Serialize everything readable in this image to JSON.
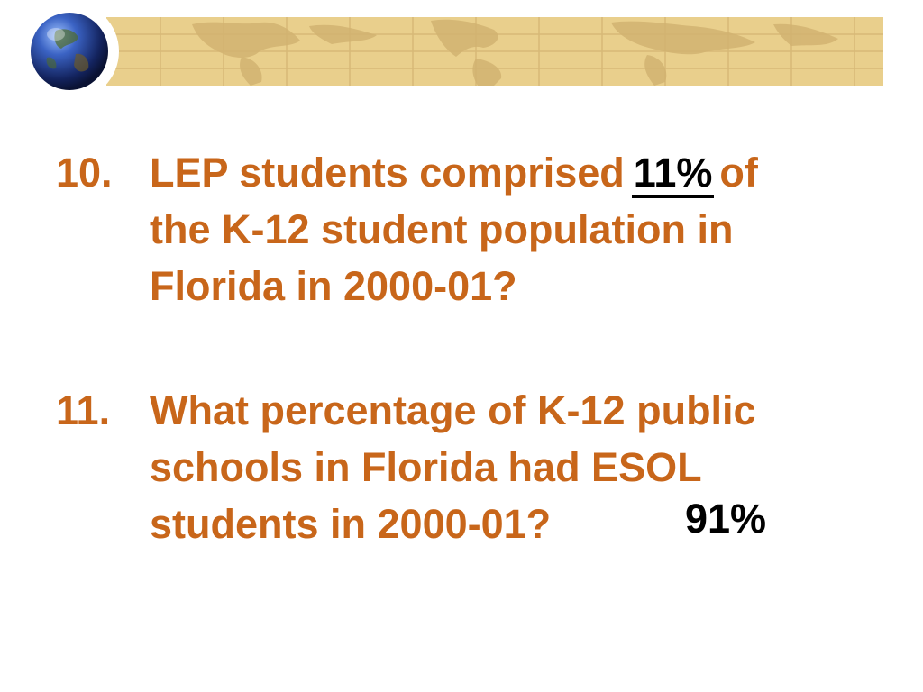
{
  "banner": {
    "colors": {
      "background": "#e9cf8c",
      "grid": "#d7b876",
      "land": "#cfb06e"
    },
    "icon": "globe-icon"
  },
  "questions": [
    {
      "number": "10.",
      "line1_before": "LEP students comprised",
      "answer": "11%",
      "line1_after": "of",
      "line2": "the K-12 student population in",
      "line3": "Florida in 2000-01?"
    },
    {
      "number": "11.",
      "line1": "What percentage of K-12 public",
      "line2": "schools in Florida had ESOL",
      "line3": "students in 2000-01?",
      "answer": "91%"
    }
  ],
  "colors": {
    "question_text": "#c8661a",
    "answer_text": "#000000"
  }
}
